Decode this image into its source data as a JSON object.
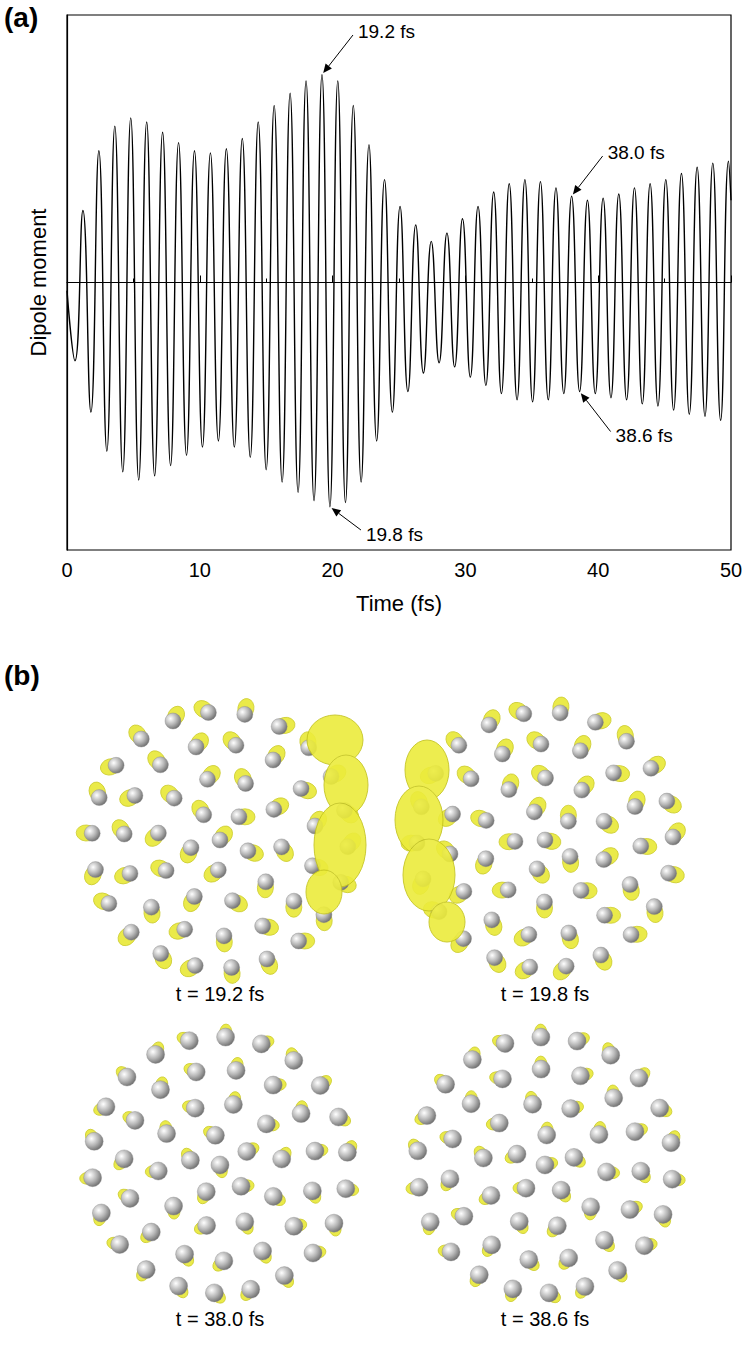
{
  "chart_data": {
    "type": "line",
    "x_label": "Time (fs)",
    "y_label": "Dipole moment",
    "x": [
      0,
      0.6,
      1.2,
      1.8,
      2.4,
      3.0,
      3.6,
      4.2,
      4.8,
      5.4,
      6.0,
      6.6,
      7.2,
      7.8,
      8.4,
      9.0,
      9.6,
      10.2,
      10.8,
      11.4,
      12.0,
      12.6,
      13.2,
      13.8,
      14.4,
      15.0,
      15.6,
      16.2,
      16.8,
      17.4,
      18.0,
      18.6,
      19.2,
      19.8,
      20.39,
      20.97,
      21.56,
      22.15,
      22.74,
      23.32,
      23.91,
      24.5,
      25.08,
      25.67,
      26.26,
      26.84,
      27.43,
      28.02,
      28.61,
      29.19,
      29.78,
      30.37,
      30.95,
      31.54,
      32.13,
      32.71,
      33.3,
      33.89,
      34.48,
      35.06,
      35.65,
      36.24,
      36.82,
      37.41,
      38.0,
      38.6,
      39.19,
      39.78,
      40.37,
      40.96,
      41.55,
      42.14,
      42.73,
      43.32,
      43.91,
      44.5,
      45.09,
      45.68,
      46.27,
      46.86,
      47.45,
      48.04,
      48.63,
      49.22,
      49.81,
      50
    ],
    "values": [
      -0.04,
      -0.38,
      0.35,
      -0.63,
      0.64,
      -0.82,
      0.76,
      -0.92,
      0.8,
      -0.96,
      0.78,
      -0.94,
      0.73,
      -0.89,
      0.68,
      -0.84,
      0.64,
      -0.8,
      0.63,
      -0.77,
      0.65,
      -0.8,
      0.7,
      -0.85,
      0.78,
      -0.91,
      0.86,
      -0.97,
      0.92,
      -1.02,
      0.98,
      -1.06,
      1.01,
      -1.09,
      0.98,
      -1.07,
      0.86,
      -0.97,
      0.67,
      -0.77,
      0.5,
      -0.63,
      0.37,
      -0.53,
      0.28,
      -0.44,
      0.2,
      -0.39,
      0.24,
      -0.41,
      0.31,
      -0.46,
      0.37,
      -0.5,
      0.44,
      -0.54,
      0.48,
      -0.57,
      0.5,
      -0.58,
      0.49,
      -0.57,
      0.46,
      -0.54,
      0.42,
      -0.53,
      0.4,
      -0.54,
      0.41,
      -0.56,
      0.43,
      -0.57,
      0.46,
      -0.59,
      0.48,
      -0.6,
      0.5,
      -0.62,
      0.53,
      -0.64,
      0.56,
      -0.65,
      0.58,
      -0.67,
      0.59,
      0.4
    ],
    "color": "#000000",
    "xlim": [
      0,
      50
    ],
    "xticks": [
      0,
      10,
      20,
      30,
      40,
      50
    ],
    "ylim": [
      -1.3,
      1.3
    ],
    "tick_labels": "x",
    "grid": false,
    "annotations": [
      {
        "text": "19.2 fs",
        "x": 19.2,
        "y": 1.01
      },
      {
        "text": "19.8 fs",
        "x": 19.8,
        "y": -1.09
      },
      {
        "text": "38.0 fs",
        "x": 38.0,
        "y": 0.42
      },
      {
        "text": "38.6 fs",
        "x": 38.6,
        "y": -0.53
      }
    ]
  },
  "panels": {
    "a": "(a)",
    "b": "(b)"
  },
  "snapshots": [
    {
      "caption": "t = 19.2 fs"
    },
    {
      "caption": "t = 19.8 fs"
    },
    {
      "caption": "t = 38.0 fs"
    },
    {
      "caption": "t = 38.6 fs"
    }
  ]
}
